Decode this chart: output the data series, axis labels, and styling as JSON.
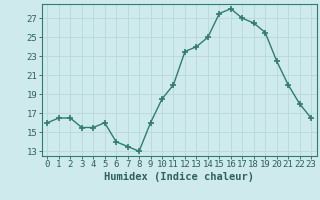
{
  "x": [
    0,
    1,
    2,
    3,
    4,
    5,
    6,
    7,
    8,
    9,
    10,
    11,
    12,
    13,
    14,
    15,
    16,
    17,
    18,
    19,
    20,
    21,
    22,
    23
  ],
  "y": [
    16.0,
    16.5,
    16.5,
    15.5,
    15.5,
    16.0,
    14.0,
    13.5,
    13.0,
    16.0,
    18.5,
    20.0,
    23.5,
    24.0,
    25.0,
    27.5,
    28.0,
    27.0,
    26.5,
    25.5,
    22.5,
    20.0,
    18.0,
    16.5
  ],
  "line_color": "#2e7d6e",
  "marker": "+",
  "bg_color": "#ceeaec",
  "grid_color": "#b8d8da",
  "xlabel": "Humidex (Indice chaleur)",
  "xlim": [
    -0.5,
    23.5
  ],
  "ylim": [
    12.5,
    28.5
  ],
  "yticks": [
    13,
    15,
    17,
    19,
    21,
    23,
    25,
    27
  ],
  "xticks": [
    0,
    1,
    2,
    3,
    4,
    5,
    6,
    7,
    8,
    9,
    10,
    11,
    12,
    13,
    14,
    15,
    16,
    17,
    18,
    19,
    20,
    21,
    22,
    23
  ],
  "font_color": "#2e6060",
  "xlabel_fontsize": 7.5,
  "tick_fontsize": 6.5,
  "linewidth": 1.0,
  "markersize": 4
}
